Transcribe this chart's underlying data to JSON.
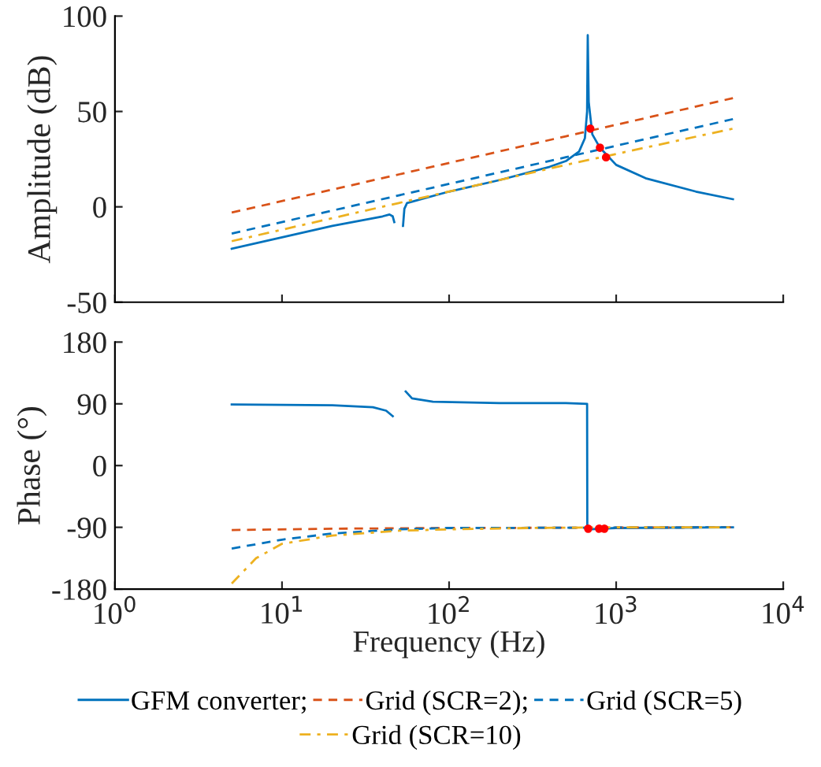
{
  "chart_data": [
    {
      "type": "line",
      "ylabel": "Amplitude (dB)",
      "log": "x",
      "xlim": [
        1,
        10000
      ],
      "ylim": [
        -50,
        100
      ],
      "yticks": [
        -50,
        0,
        50,
        100
      ],
      "tick_labels": "y",
      "grid": false,
      "legend": false,
      "series": [
        {
          "color": "#0072bd",
          "line_style": "solid",
          "x": [
            5,
            10,
            20,
            40,
            44,
            46,
            47,
            50,
            53,
            54,
            56,
            100,
            200,
            400,
            500,
            600,
            650,
            670,
            676,
            685,
            720,
            800,
            1000,
            1500,
            3000,
            5000
          ],
          "values": [
            -22,
            -16,
            -10,
            -5,
            -4,
            -5,
            -8,
            null,
            -10,
            -1,
            2,
            8,
            14,
            21,
            24,
            29,
            36,
            50,
            90,
            55,
            38,
            31,
            22,
            15,
            8,
            4
          ]
        },
        {
          "color": "#d95319",
          "line_style": "dashed",
          "x": [
            5,
            50,
            500,
            5000
          ],
          "values": [
            -3,
            17,
            37,
            57
          ]
        },
        {
          "color": "#0072bd",
          "line_style": "dashed",
          "x": [
            5,
            50,
            500,
            5000
          ],
          "values": [
            -14,
            6,
            26,
            46
          ]
        },
        {
          "color": "#edb120",
          "line_style": "dashdot",
          "x": [
            5,
            50,
            500,
            5000
          ],
          "values": [
            -18,
            2,
            22,
            41
          ]
        },
        {
          "type": "scatter",
          "marker": "circle",
          "color": "#ff0000",
          "x": [
            700,
            800,
            870
          ],
          "values": [
            41,
            31,
            26
          ]
        }
      ]
    },
    {
      "type": "line",
      "xlabel": "Frequency (Hz)",
      "ylabel": "Phase (°)",
      "log": "x",
      "xlim": [
        1,
        10000
      ],
      "ylim": [
        -180,
        180
      ],
      "yticks": [
        -180,
        -90,
        0,
        90,
        180
      ],
      "xticks": [
        {
          "value": 1,
          "label": "10$^{0}$"
        },
        {
          "value": 10,
          "label": "10$^{1}$"
        },
        {
          "value": 100,
          "label": "10$^{2}$"
        },
        {
          "value": 1000,
          "label": "10$^{3}$"
        },
        {
          "value": 10000,
          "label": "10$^{4}$"
        }
      ],
      "grid": false,
      "legend": "bottom",
      "series": [
        {
          "name": "GFM converter;",
          "color": "#0072bd",
          "line_style": "solid",
          "x": [
            5,
            20,
            35,
            42,
            46,
            50,
            55,
            60,
            80,
            200,
            500,
            670,
            672,
            675,
            1000,
            5000
          ],
          "values": [
            89,
            88,
            85,
            80,
            72,
            null,
            108,
            98,
            93,
            91,
            91,
            90,
            -90,
            -93,
            -91,
            -90
          ]
        },
        {
          "name": "Grid (SCR=2);",
          "color": "#d95319",
          "line_style": "dashed",
          "x": [
            5,
            20,
            100,
            5000
          ],
          "values": [
            -94,
            -92,
            -91,
            -90
          ]
        },
        {
          "name": "Grid (SCR=5)",
          "color": "#0072bd",
          "line_style": "dashed",
          "x": [
            5,
            10,
            20,
            50,
            100,
            5000
          ],
          "values": [
            -121,
            -108,
            -99,
            -93,
            -91,
            -90
          ]
        },
        {
          "name": "Grid (SCR=10)",
          "color": "#edb120",
          "line_style": "dashdot",
          "x": [
            5,
            7,
            10,
            20,
            50,
            100,
            300,
            1000,
            5000
          ],
          "values": [
            -172,
            -135,
            -114,
            -102,
            -95,
            -93,
            -91,
            -90,
            -90
          ]
        },
        {
          "type": "scatter",
          "marker": "circle",
          "color": "#ff0000",
          "x": [
            680,
            790,
            850
          ],
          "values": [
            -92,
            -92,
            -92
          ]
        }
      ]
    }
  ]
}
